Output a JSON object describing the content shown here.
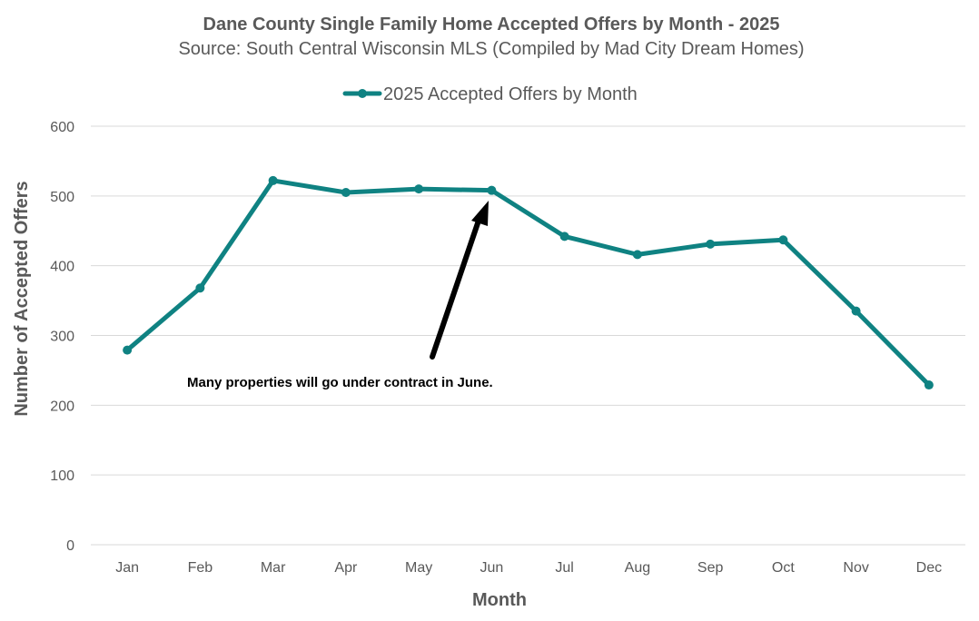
{
  "chart_data": {
    "type": "line",
    "title": "Dane County Single Family Home Accepted Offers by Month - 2025",
    "subtitle": "Source: South Central Wisconsin MLS (Compiled by Mad City Dream Homes)",
    "xlabel": "Month",
    "ylabel": "Number of Accepted Offers",
    "categories": [
      "Jan",
      "Feb",
      "Mar",
      "Apr",
      "May",
      "Jun",
      "Jul",
      "Aug",
      "Sep",
      "Oct",
      "Nov",
      "Dec"
    ],
    "series": [
      {
        "name": "2025 Accepted Offers by Month",
        "values": [
          279,
          368,
          522,
          505,
          510,
          508,
          442,
          416,
          431,
          437,
          335,
          229
        ],
        "color": "#0f8282"
      }
    ],
    "ylim": [
      0,
      600
    ],
    "yticks": [
      "0",
      "100",
      "200",
      "300",
      "400",
      "500",
      "600"
    ],
    "grid": true,
    "legend_position": "top-center",
    "annotations": [
      {
        "text": "Many properties will go under contract in June.",
        "points_to": "Jun"
      }
    ]
  }
}
